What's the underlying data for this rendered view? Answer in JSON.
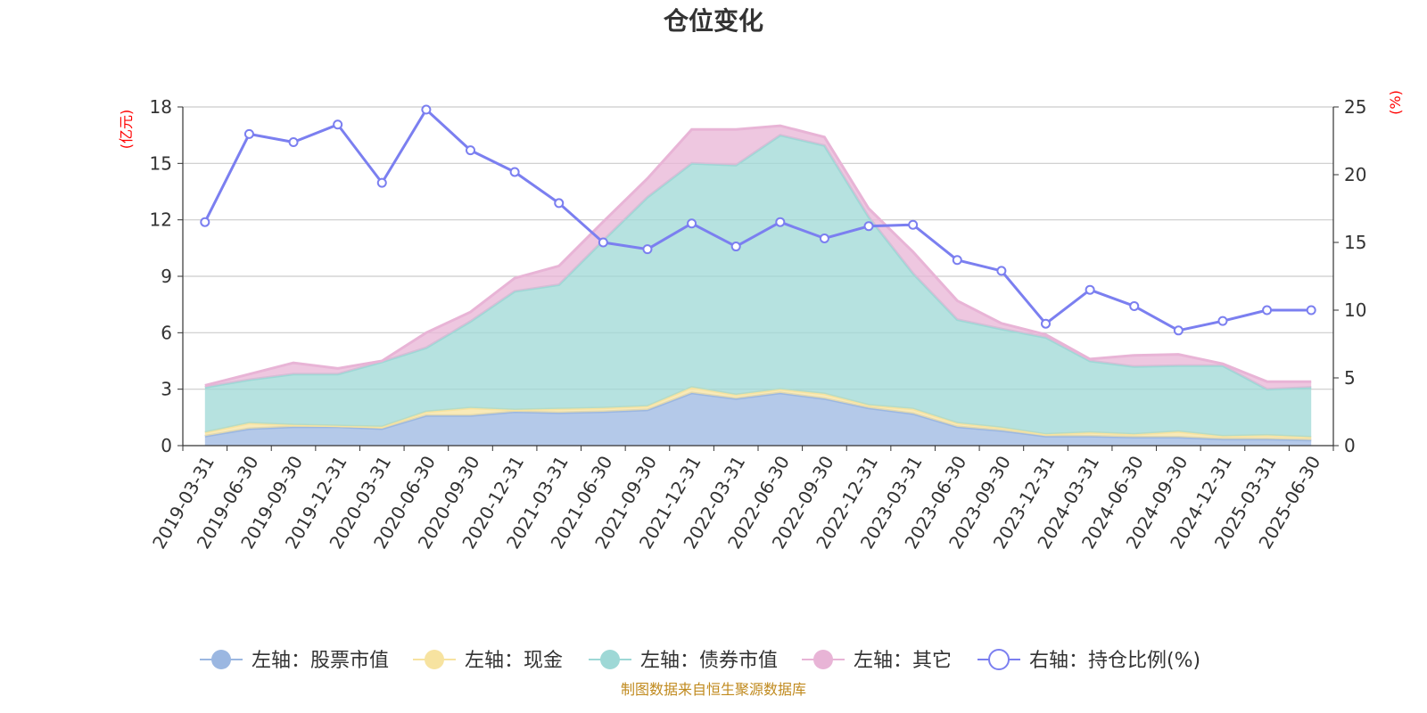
{
  "chart_data": {
    "type": "area",
    "title": "仓位变化",
    "left_axis_unit": "(亿元)",
    "right_axis_unit": "(%)",
    "categories": [
      "2019-03-31",
      "2019-06-30",
      "2019-09-30",
      "2019-12-31",
      "2020-03-31",
      "2020-06-30",
      "2020-09-30",
      "2020-12-31",
      "2021-03-31",
      "2021-06-30",
      "2021-09-30",
      "2021-12-31",
      "2022-03-31",
      "2022-06-30",
      "2022-09-30",
      "2022-12-31",
      "2023-03-31",
      "2023-06-30",
      "2023-09-30",
      "2023-12-31",
      "2024-03-31",
      "2024-06-30",
      "2024-09-30",
      "2024-12-31",
      "2025-03-31",
      "2025-06-30"
    ],
    "left_yticks": [
      "0",
      "3",
      "6",
      "9",
      "12",
      "15",
      "18"
    ],
    "right_yticks": [
      "0",
      "5",
      "10",
      "15",
      "20",
      "25"
    ],
    "left_ylim": [
      0,
      18
    ],
    "right_ylim": [
      0,
      25
    ],
    "grid": true,
    "legend_position": "bottom",
    "stacked": true,
    "series": [
      {
        "name": "左轴：股票市值",
        "axis": "left",
        "kind": "area",
        "color": "#9bb7e1",
        "values": [
          0.5,
          0.9,
          1.0,
          1.0,
          0.9,
          1.6,
          1.6,
          1.8,
          1.75,
          1.8,
          1.9,
          2.8,
          2.5,
          2.8,
          2.5,
          2.0,
          1.7,
          1.0,
          0.8,
          0.5,
          0.5,
          0.45,
          0.45,
          0.35,
          0.35,
          0.3
        ]
      },
      {
        "name": "左轴：现金",
        "axis": "left",
        "kind": "area",
        "color": "#f7e3a0",
        "values": [
          0.2,
          0.3,
          0.1,
          0.05,
          0.1,
          0.2,
          0.4,
          0.1,
          0.2,
          0.2,
          0.2,
          0.3,
          0.2,
          0.2,
          0.25,
          0.15,
          0.25,
          0.2,
          0.15,
          0.1,
          0.2,
          0.15,
          0.3,
          0.15,
          0.2,
          0.15
        ]
      },
      {
        "name": "左轴：债券市值",
        "axis": "left",
        "kind": "area",
        "color": "#9ed8d6",
        "values": [
          2.4,
          2.3,
          2.7,
          2.75,
          3.45,
          3.4,
          4.6,
          6.3,
          6.6,
          8.9,
          11.1,
          11.9,
          12.2,
          13.5,
          13.2,
          10.0,
          7.2,
          5.5,
          5.25,
          5.15,
          3.8,
          3.6,
          3.5,
          3.75,
          2.45,
          2.65
        ]
      },
      {
        "name": "左轴：其它",
        "axis": "left",
        "kind": "area",
        "color": "#e8b4d6",
        "values": [
          0.1,
          0.3,
          0.6,
          0.3,
          0.05,
          0.8,
          0.5,
          0.7,
          1.0,
          1.0,
          1.0,
          1.8,
          1.9,
          0.5,
          0.45,
          0.45,
          1.15,
          1.0,
          0.3,
          0.15,
          0.1,
          0.6,
          0.6,
          0.1,
          0.4,
          0.3
        ]
      },
      {
        "name": "右轴：持仓比例(%)",
        "axis": "right",
        "kind": "line",
        "color": "#7b7ff0",
        "values": [
          16.5,
          23.0,
          22.4,
          23.7,
          19.4,
          24.8,
          21.8,
          20.2,
          17.9,
          15.0,
          14.5,
          16.4,
          14.7,
          16.5,
          15.3,
          16.2,
          16.3,
          13.7,
          12.9,
          9.0,
          11.5,
          10.3,
          8.5,
          9.2,
          10.0,
          10.0
        ]
      }
    ],
    "source": "制图数据来自恒生聚源数据库"
  }
}
